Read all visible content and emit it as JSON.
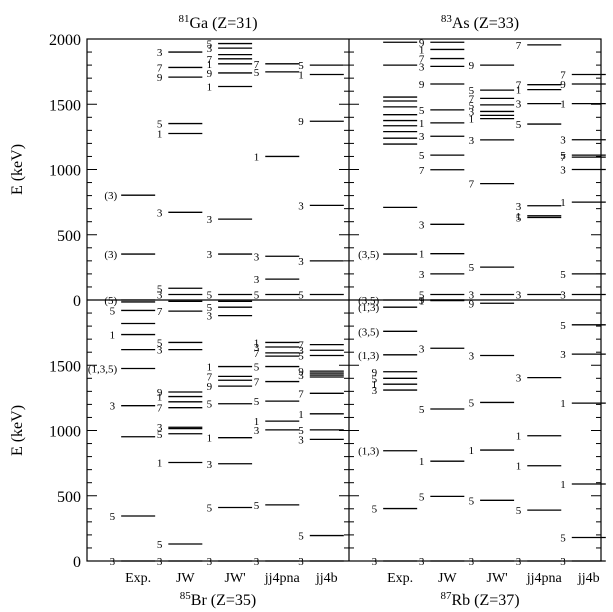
{
  "chart_data": {
    "type": "level-scheme",
    "columns": [
      "Exp.",
      "JW",
      "JW'",
      "jj4pna",
      "jj4b"
    ],
    "ylim": [
      0,
      2000
    ],
    "panels": [
      {
        "id": "ga81",
        "row": 0,
        "col": 0,
        "title": {
          "mass": "81",
          "text": "Ga (Z=31)"
        },
        "levels": [
          {
            "c": 0,
            "e": 0,
            "l": "(5)",
            "side": "l"
          },
          {
            "c": 0,
            "e": 352,
            "l": "(3)",
            "side": "l"
          },
          {
            "c": 0,
            "e": 803,
            "l": "(3)",
            "side": "l"
          },
          {
            "c": 1,
            "e": 42,
            "l": "3"
          },
          {
            "c": 1,
            "e": 90,
            "l": "5"
          },
          {
            "c": 1,
            "e": 672,
            "l": "3"
          },
          {
            "c": 1,
            "e": 1276,
            "l": "1"
          },
          {
            "c": 1,
            "e": 1352,
            "l": "5"
          },
          {
            "c": 1,
            "e": 1708,
            "l": "9"
          },
          {
            "c": 1,
            "e": 1782,
            "l": "7"
          },
          {
            "c": 1,
            "e": 1900,
            "l": "3"
          },
          {
            "c": 2,
            "e": 42,
            "l": "5"
          },
          {
            "c": 2,
            "e": 352,
            "l": "3"
          },
          {
            "c": 2,
            "e": 620,
            "l": "3"
          },
          {
            "c": 2,
            "e": 1636,
            "l": "1"
          },
          {
            "c": 2,
            "e": 1740,
            "l": "9"
          },
          {
            "c": 2,
            "e": 1810,
            "l": "1"
          },
          {
            "c": 2,
            "e": 1848,
            "l": "7"
          },
          {
            "c": 2,
            "e": 1880,
            "l": ""
          },
          {
            "c": 2,
            "e": 1930,
            "l": "3"
          },
          {
            "c": 2,
            "e": 1965,
            "l": "5"
          },
          {
            "c": 3,
            "e": 42,
            "l": "5"
          },
          {
            "c": 3,
            "e": 160,
            "l": "3"
          },
          {
            "c": 3,
            "e": 335,
            "l": "3"
          },
          {
            "c": 3,
            "e": 1100,
            "l": "1"
          },
          {
            "c": 3,
            "e": 1748,
            "l": "5"
          },
          {
            "c": 3,
            "e": 1810,
            "l": "7"
          },
          {
            "c": 4,
            "e": 42,
            "l": "5"
          },
          {
            "c": 4,
            "e": 300,
            "l": "3"
          },
          {
            "c": 4,
            "e": 725,
            "l": "3"
          },
          {
            "c": 4,
            "e": 1370,
            "l": "9"
          },
          {
            "c": 4,
            "e": 1728,
            "l": "1"
          },
          {
            "c": 4,
            "e": 1800,
            "l": "5"
          }
        ]
      },
      {
        "id": "as83",
        "row": 0,
        "col": 1,
        "title": {
          "mass": "83",
          "text": "As (Z=33)"
        },
        "levels": [
          {
            "c": 0,
            "e": 0,
            "l": "(3,5)",
            "side": "l"
          },
          {
            "c": 0,
            "e": 352,
            "l": "(3,5)",
            "side": "l"
          },
          {
            "c": 0,
            "e": 710,
            "l": ""
          },
          {
            "c": 0,
            "e": 1195,
            "l": ""
          },
          {
            "c": 0,
            "e": 1240,
            "l": ""
          },
          {
            "c": 0,
            "e": 1290,
            "l": ""
          },
          {
            "c": 0,
            "e": 1335,
            "l": ""
          },
          {
            "c": 0,
            "e": 1375,
            "l": ""
          },
          {
            "c": 0,
            "e": 1420,
            "l": ""
          },
          {
            "c": 0,
            "e": 1480,
            "l": ""
          },
          {
            "c": 0,
            "e": 1525,
            "l": ""
          },
          {
            "c": 0,
            "e": 1555,
            "l": ""
          },
          {
            "c": 0,
            "e": 1800,
            "l": ""
          },
          {
            "c": 0,
            "e": 1975,
            "l": ""
          },
          {
            "c": 1,
            "e": 42,
            "l": "5"
          },
          {
            "c": 1,
            "e": 200,
            "l": "3"
          },
          {
            "c": 1,
            "e": 355,
            "l": "1"
          },
          {
            "c": 1,
            "e": 580,
            "l": "3"
          },
          {
            "c": 1,
            "e": 998,
            "l": "7"
          },
          {
            "c": 1,
            "e": 1110,
            "l": "5"
          },
          {
            "c": 1,
            "e": 1255,
            "l": "3"
          },
          {
            "c": 1,
            "e": 1357,
            "l": "1"
          },
          {
            "c": 1,
            "e": 1457,
            "l": "5"
          },
          {
            "c": 1,
            "e": 1655,
            "l": "9"
          },
          {
            "c": 1,
            "e": 1790,
            "l": "3"
          },
          {
            "c": 1,
            "e": 1850,
            "l": "7"
          },
          {
            "c": 1,
            "e": 1920,
            "l": "1"
          },
          {
            "c": 1,
            "e": 1975,
            "l": "9"
          },
          {
            "c": 2,
            "e": 42,
            "l": "3"
          },
          {
            "c": 2,
            "e": 252,
            "l": "5"
          },
          {
            "c": 2,
            "e": 892,
            "l": "7"
          },
          {
            "c": 2,
            "e": 1227,
            "l": "3"
          },
          {
            "c": 2,
            "e": 1390,
            "l": "1"
          },
          {
            "c": 2,
            "e": 1415,
            "l": ""
          },
          {
            "c": 2,
            "e": 1445,
            "l": "3"
          },
          {
            "c": 2,
            "e": 1495,
            "l": "5"
          },
          {
            "c": 2,
            "e": 1545,
            "l": "7"
          },
          {
            "c": 2,
            "e": 1608,
            "l": "5"
          },
          {
            "c": 2,
            "e": 1800,
            "l": "9"
          },
          {
            "c": 3,
            "e": 42,
            "l": "3"
          },
          {
            "c": 3,
            "e": 632,
            "l": "5"
          },
          {
            "c": 3,
            "e": 645,
            "l": "1"
          },
          {
            "c": 3,
            "e": 722,
            "l": "3"
          },
          {
            "c": 3,
            "e": 1348,
            "l": "5"
          },
          {
            "c": 3,
            "e": 1505,
            "l": "3"
          },
          {
            "c": 3,
            "e": 1612,
            "l": "1"
          },
          {
            "c": 3,
            "e": 1650,
            "l": "7"
          },
          {
            "c": 3,
            "e": 1955,
            "l": "7"
          },
          {
            "c": 4,
            "e": 42,
            "l": "3"
          },
          {
            "c": 4,
            "e": 200,
            "l": "5"
          },
          {
            "c": 4,
            "e": 750,
            "l": "1"
          },
          {
            "c": 4,
            "e": 1000,
            "l": "3"
          },
          {
            "c": 4,
            "e": 1095,
            "l": "7"
          },
          {
            "c": 4,
            "e": 1110,
            "l": "5"
          },
          {
            "c": 4,
            "e": 1228,
            "l": "3"
          },
          {
            "c": 4,
            "e": 1505,
            "l": "1"
          },
          {
            "c": 4,
            "e": 1655,
            "l": "9"
          },
          {
            "c": 4,
            "e": 1728,
            "l": "7"
          }
        ]
      },
      {
        "id": "br85",
        "row": 1,
        "col": 0,
        "title": {
          "mass": "85",
          "text": "Br (Z=35)"
        },
        "levels": [
          {
            "c": 0,
            "e": 0,
            "l": "3"
          },
          {
            "c": 0,
            "e": 345,
            "l": "5"
          },
          {
            "c": 0,
            "e": 952,
            "l": ""
          },
          {
            "c": 0,
            "e": 1190,
            "l": "3"
          },
          {
            "c": 0,
            "e": 1475,
            "l": "(1,3,5)",
            "side": "l"
          },
          {
            "c": 0,
            "e": 1620,
            "l": ""
          },
          {
            "c": 0,
            "e": 1735,
            "l": "1"
          },
          {
            "c": 0,
            "e": 1820,
            "l": ""
          },
          {
            "c": 0,
            "e": 1920,
            "l": "5"
          },
          {
            "c": 0,
            "e": 1985,
            "l": ""
          },
          {
            "c": 1,
            "e": 0,
            "l": "3"
          },
          {
            "c": 1,
            "e": 130,
            "l": "5"
          },
          {
            "c": 1,
            "e": 755,
            "l": "1"
          },
          {
            "c": 1,
            "e": 975,
            "l": "5"
          },
          {
            "c": 1,
            "e": 1015,
            "l": ""
          },
          {
            "c": 1,
            "e": 1025,
            "l": "3"
          },
          {
            "c": 1,
            "e": 1175,
            "l": "7"
          },
          {
            "c": 1,
            "e": 1220,
            "l": ""
          },
          {
            "c": 1,
            "e": 1260,
            "l": "1"
          },
          {
            "c": 1,
            "e": 1295,
            "l": "9"
          },
          {
            "c": 1,
            "e": 1620,
            "l": "3"
          },
          {
            "c": 1,
            "e": 1675,
            "l": "5"
          },
          {
            "c": 1,
            "e": 1915,
            "l": "7"
          },
          {
            "c": 1,
            "e": 1990,
            "l": ""
          },
          {
            "c": 2,
            "e": 0,
            "l": "3"
          },
          {
            "c": 2,
            "e": 410,
            "l": "5"
          },
          {
            "c": 2,
            "e": 745,
            "l": "3"
          },
          {
            "c": 2,
            "e": 945,
            "l": "1"
          },
          {
            "c": 2,
            "e": 1205,
            "l": "5"
          },
          {
            "c": 2,
            "e": 1340,
            "l": "9"
          },
          {
            "c": 2,
            "e": 1385,
            "l": ""
          },
          {
            "c": 2,
            "e": 1415,
            "l": "7"
          },
          {
            "c": 2,
            "e": 1490,
            "l": "1"
          },
          {
            "c": 2,
            "e": 1880,
            "l": "3"
          },
          {
            "c": 2,
            "e": 1945,
            "l": "5"
          },
          {
            "c": 2,
            "e": 1990,
            "l": ""
          },
          {
            "c": 3,
            "e": 0,
            "l": "3"
          },
          {
            "c": 3,
            "e": 430,
            "l": "5"
          },
          {
            "c": 3,
            "e": 1005,
            "l": "3"
          },
          {
            "c": 3,
            "e": 1072,
            "l": "1"
          },
          {
            "c": 3,
            "e": 1225,
            "l": "5"
          },
          {
            "c": 3,
            "e": 1375,
            "l": "7"
          },
          {
            "c": 3,
            "e": 1490,
            "l": "5"
          },
          {
            "c": 3,
            "e": 1570,
            "l": ""
          },
          {
            "c": 3,
            "e": 1595,
            "l": "7"
          },
          {
            "c": 3,
            "e": 1640,
            "l": "3"
          },
          {
            "c": 3,
            "e": 1675,
            "l": "1"
          },
          {
            "c": 4,
            "e": 0,
            "l": "3"
          },
          {
            "c": 4,
            "e": 195,
            "l": "5"
          },
          {
            "c": 4,
            "e": 932,
            "l": "3"
          },
          {
            "c": 4,
            "e": 1005,
            "l": "5"
          },
          {
            "c": 4,
            "e": 1128,
            "l": "1"
          },
          {
            "c": 4,
            "e": 1285,
            "l": "7"
          },
          {
            "c": 4,
            "e": 1410,
            "l": ""
          },
          {
            "c": 4,
            "e": 1425,
            "l": "3"
          },
          {
            "c": 4,
            "e": 1440,
            "l": ""
          },
          {
            "c": 4,
            "e": 1455,
            "l": "9"
          },
          {
            "c": 4,
            "e": 1575,
            "l": "5"
          },
          {
            "c": 4,
            "e": 1615,
            "l": "3"
          },
          {
            "c": 4,
            "e": 1658,
            "l": "7"
          }
        ]
      },
      {
        "id": "rb87",
        "row": 1,
        "col": 1,
        "title": {
          "mass": "87",
          "text": "Rb (Z=37)"
        },
        "levels": [
          {
            "c": 0,
            "e": 0,
            "l": "3"
          },
          {
            "c": 0,
            "e": 402,
            "l": "5"
          },
          {
            "c": 0,
            "e": 845,
            "l": "(1,3)",
            "side": "l"
          },
          {
            "c": 0,
            "e": 1310,
            "l": "3"
          },
          {
            "c": 0,
            "e": 1355,
            "l": "1"
          },
          {
            "c": 0,
            "e": 1400,
            "l": "5"
          },
          {
            "c": 0,
            "e": 1450,
            "l": "9"
          },
          {
            "c": 0,
            "e": 1580,
            "l": "(1,3)",
            "side": "l"
          },
          {
            "c": 0,
            "e": 1760,
            "l": "(3,5)",
            "side": "l"
          },
          {
            "c": 0,
            "e": 1945,
            "l": "(1,3)",
            "side": "l"
          },
          {
            "c": 1,
            "e": 0,
            "l": "3"
          },
          {
            "c": 1,
            "e": 495,
            "l": "5"
          },
          {
            "c": 1,
            "e": 765,
            "l": "1"
          },
          {
            "c": 1,
            "e": 1165,
            "l": "5"
          },
          {
            "c": 1,
            "e": 1630,
            "l": "3"
          },
          {
            "c": 1,
            "e": 1995,
            "l": "1"
          },
          {
            "c": 1,
            "e": 2000,
            "l": ""
          },
          {
            "c": 1,
            "e": 2005,
            "l": "9"
          },
          {
            "c": 2,
            "e": 0,
            "l": "3"
          },
          {
            "c": 2,
            "e": 465,
            "l": "5"
          },
          {
            "c": 2,
            "e": 850,
            "l": "1"
          },
          {
            "c": 2,
            "e": 1215,
            "l": "5"
          },
          {
            "c": 2,
            "e": 1575,
            "l": "3"
          },
          {
            "c": 2,
            "e": 1975,
            "l": "9"
          },
          {
            "c": 3,
            "e": 0,
            "l": "3"
          },
          {
            "c": 3,
            "e": 390,
            "l": "5"
          },
          {
            "c": 3,
            "e": 730,
            "l": "1"
          },
          {
            "c": 3,
            "e": 960,
            "l": "1"
          },
          {
            "c": 3,
            "e": 1405,
            "l": "3"
          },
          {
            "c": 4,
            "e": 0,
            "l": "3"
          },
          {
            "c": 4,
            "e": 180,
            "l": "5"
          },
          {
            "c": 4,
            "e": 590,
            "l": "1"
          },
          {
            "c": 4,
            "e": 1210,
            "l": "1"
          },
          {
            "c": 4,
            "e": 1585,
            "l": "3"
          },
          {
            "c": 4,
            "e": 1810,
            "l": "5"
          }
        ]
      }
    ],
    "ylabel": "E (keV)",
    "yticks": [
      0,
      500,
      1000,
      1500,
      2000
    ],
    "yticks_lower": [
      0,
      500,
      1000,
      1500
    ]
  }
}
